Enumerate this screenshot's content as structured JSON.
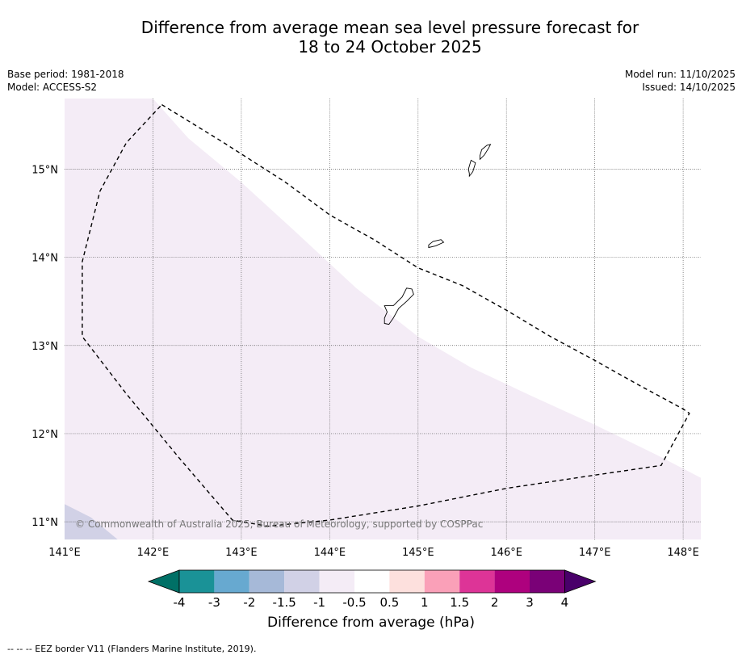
{
  "title_line1": "Difference from average mean sea level pressure forecast for",
  "title_line2": "18 to 24 October 2025",
  "meta": {
    "base_period": "Base period: 1981-2018",
    "model": "Model: ACCESS-S2",
    "model_run": "Model run: 11/10/2025",
    "issued": "Issued: 14/10/2025"
  },
  "copyright": "© Commonwealth of Australia 2025, Bureau of Meteorology, supported by COSPPac",
  "map": {
    "lon_range": [
      141.0,
      148.2
    ],
    "lat_range": [
      10.8,
      15.8
    ],
    "lon_ticks": [
      {
        "value": 141,
        "label": "141°E"
      },
      {
        "value": 142,
        "label": "142°E"
      },
      {
        "value": 143,
        "label": "143°E"
      },
      {
        "value": 144,
        "label": "144°E"
      },
      {
        "value": 145,
        "label": "145°E"
      },
      {
        "value": 146,
        "label": "146°E"
      },
      {
        "value": 147,
        "label": "147°E"
      },
      {
        "value": 148,
        "label": "148°E"
      }
    ],
    "lat_ticks": [
      {
        "value": 15,
        "label": "15°N"
      },
      {
        "value": 14,
        "label": "14°N"
      },
      {
        "value": 13,
        "label": "13°N"
      },
      {
        "value": 12,
        "label": "12°N"
      },
      {
        "value": 11,
        "label": "11°N"
      }
    ],
    "regions": [
      {
        "name": "pressure-anomaly-region",
        "category": "-1 to -0.5",
        "color": "#f4ecf6",
        "polygon": [
          [
            141.0,
            15.8
          ],
          [
            142.0,
            15.8
          ],
          [
            142.4,
            15.35
          ],
          [
            143.0,
            14.85
          ],
          [
            143.6,
            14.3
          ],
          [
            144.3,
            13.65
          ],
          [
            145.0,
            13.1
          ],
          [
            145.6,
            12.75
          ],
          [
            146.3,
            12.42
          ],
          [
            147.0,
            12.1
          ],
          [
            147.7,
            11.76
          ],
          [
            148.2,
            11.5
          ],
          [
            148.2,
            10.8
          ],
          [
            141.0,
            10.8
          ]
        ]
      },
      {
        "name": "pressure-anomaly-region-corner",
        "category": "-1.5 to -1",
        "color": "#d1d1e6",
        "polygon": [
          [
            141.0,
            11.2
          ],
          [
            141.3,
            11.05
          ],
          [
            141.6,
            10.8
          ],
          [
            141.0,
            10.8
          ]
        ]
      }
    ],
    "eez_border": [
      [
        142.1,
        15.73
      ],
      [
        142.8,
        15.3
      ],
      [
        143.5,
        14.85
      ],
      [
        144.0,
        14.48
      ],
      [
        144.5,
        14.2
      ],
      [
        145.0,
        13.88
      ],
      [
        145.5,
        13.68
      ],
      [
        146.0,
        13.4
      ],
      [
        146.5,
        13.1
      ],
      [
        147.0,
        12.83
      ],
      [
        147.5,
        12.55
      ],
      [
        148.0,
        12.28
      ],
      [
        148.07,
        12.23
      ],
      [
        147.75,
        11.64
      ],
      [
        147.0,
        11.53
      ],
      [
        146.0,
        11.38
      ],
      [
        145.0,
        11.18
      ],
      [
        144.0,
        11.02
      ],
      [
        143.3,
        10.95
      ],
      [
        142.9,
        11.02
      ],
      [
        142.3,
        11.72
      ],
      [
        141.7,
        12.45
      ],
      [
        141.2,
        13.1
      ],
      [
        141.2,
        13.95
      ],
      [
        141.4,
        14.75
      ],
      [
        141.7,
        15.3
      ],
      [
        142.1,
        15.73
      ]
    ],
    "islands": [
      {
        "name": "guam",
        "polygon": [
          [
            144.62,
            13.25
          ],
          [
            144.67,
            13.24
          ],
          [
            144.72,
            13.31
          ],
          [
            144.78,
            13.42
          ],
          [
            144.87,
            13.5
          ],
          [
            144.95,
            13.58
          ],
          [
            144.93,
            13.64
          ],
          [
            144.87,
            13.65
          ],
          [
            144.82,
            13.55
          ],
          [
            144.72,
            13.45
          ],
          [
            144.62,
            13.45
          ],
          [
            144.65,
            13.38
          ],
          [
            144.62,
            13.31
          ]
        ]
      },
      {
        "name": "rota",
        "polygon": [
          [
            145.12,
            14.11
          ],
          [
            145.2,
            14.13
          ],
          [
            145.29,
            14.17
          ],
          [
            145.26,
            14.2
          ],
          [
            145.17,
            14.18
          ],
          [
            145.12,
            14.14
          ]
        ]
      },
      {
        "name": "tinian",
        "polygon": [
          [
            145.58,
            14.92
          ],
          [
            145.62,
            14.97
          ],
          [
            145.65,
            15.07
          ],
          [
            145.6,
            15.1
          ],
          [
            145.57,
            15.0
          ],
          [
            145.58,
            14.95
          ]
        ]
      },
      {
        "name": "saipan",
        "polygon": [
          [
            145.7,
            15.11
          ],
          [
            145.75,
            15.16
          ],
          [
            145.8,
            15.24
          ],
          [
            145.82,
            15.28
          ],
          [
            145.78,
            15.27
          ],
          [
            145.72,
            15.22
          ],
          [
            145.7,
            15.15
          ]
        ]
      }
    ]
  },
  "colorbar": {
    "title": "Difference from average (hPa)",
    "labels": [
      "-4",
      "-3",
      "-2",
      "-1.5",
      "-1",
      "-0.5",
      "0.5",
      "1",
      "1.5",
      "2",
      "3",
      "4"
    ],
    "colors": [
      "#007066",
      "#1a9297",
      "#67a9d0",
      "#a6b9d8",
      "#d1d1e6",
      "#f4ecf6",
      "#ffffff",
      "#fde0dd",
      "#faa0b8",
      "#dd3497",
      "#ae017e",
      "#7a0177",
      "#49006a"
    ]
  },
  "footer": "--  --  -- EEZ border V11 (Flanders Marine Institute, 2019)."
}
